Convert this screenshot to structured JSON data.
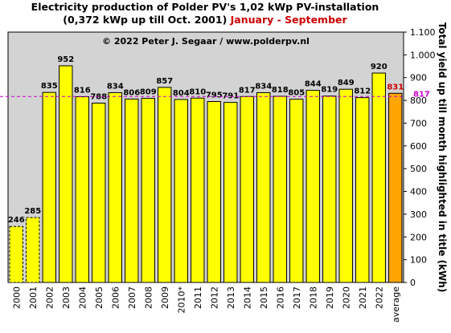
{
  "chart_data": {
    "type": "bar",
    "title": "Electricity production  of Polder  PV's 1,02 kWp PV-installation",
    "subtitle": "(0,372 kWp up till Oct. 2001)",
    "subtitle_highlight": "January - September",
    "annotation": "© 2022 Peter J. Segaar / www.polderpv.nl",
    "y_axis_label": "Total yield up till month highlighted in title (kWh)",
    "categories": [
      "2000",
      "2001",
      "2002",
      "2003",
      "2004",
      "2005",
      "2006",
      "2007",
      "2008",
      "2009",
      "2010*",
      "2011",
      "2012",
      "2013",
      "2014",
      "2015",
      "2016",
      "2017",
      "2018",
      "2019",
      "2020",
      "2021",
      "2022",
      "average"
    ],
    "values": [
      246,
      285,
      835,
      952,
      816,
      788,
      834,
      806,
      809,
      857,
      804,
      810,
      795,
      791,
      817,
      834,
      818,
      805,
      844,
      819,
      849,
      812,
      920,
      831
    ],
    "colors": [
      "#ffff00",
      "#ffff00",
      "#ffff00",
      "#ffff00",
      "#ffff00",
      "#ffff00",
      "#ffff00",
      "#ffff00",
      "#ffff00",
      "#ffff00",
      "#ffff00",
      "#ffff00",
      "#ffff00",
      "#ffff00",
      "#ffff00",
      "#ffff00",
      "#ffff00",
      "#ffff00",
      "#ffff00",
      "#ffff00",
      "#ffff00",
      "#ffff00",
      "#ffff00",
      "#ffa500"
    ],
    "label_colors": [
      "#000000",
      "#000000",
      "#000000",
      "#000000",
      "#000000",
      "#000000",
      "#000000",
      "#000000",
      "#000000",
      "#000000",
      "#000000",
      "#000000",
      "#000000",
      "#000000",
      "#000000",
      "#000000",
      "#000000",
      "#000000",
      "#000000",
      "#000000",
      "#000000",
      "#000000",
      "#000000",
      "#cc0000"
    ],
    "dashed": [
      true,
      true,
      false,
      false,
      false,
      false,
      false,
      false,
      false,
      false,
      false,
      false,
      false,
      false,
      false,
      false,
      false,
      false,
      false,
      false,
      false,
      false,
      false,
      false
    ],
    "reference_line": {
      "value": 817,
      "color": "#cc00cc"
    },
    "ylim": [
      0,
      1100
    ],
    "yticks": [
      0,
      100,
      200,
      300,
      400,
      500,
      600,
      700,
      800,
      900,
      {
        "value": 1000,
        "label": "1.000"
      },
      {
        "value": 1100,
        "label": "1.100"
      }
    ],
    "grid": false
  }
}
